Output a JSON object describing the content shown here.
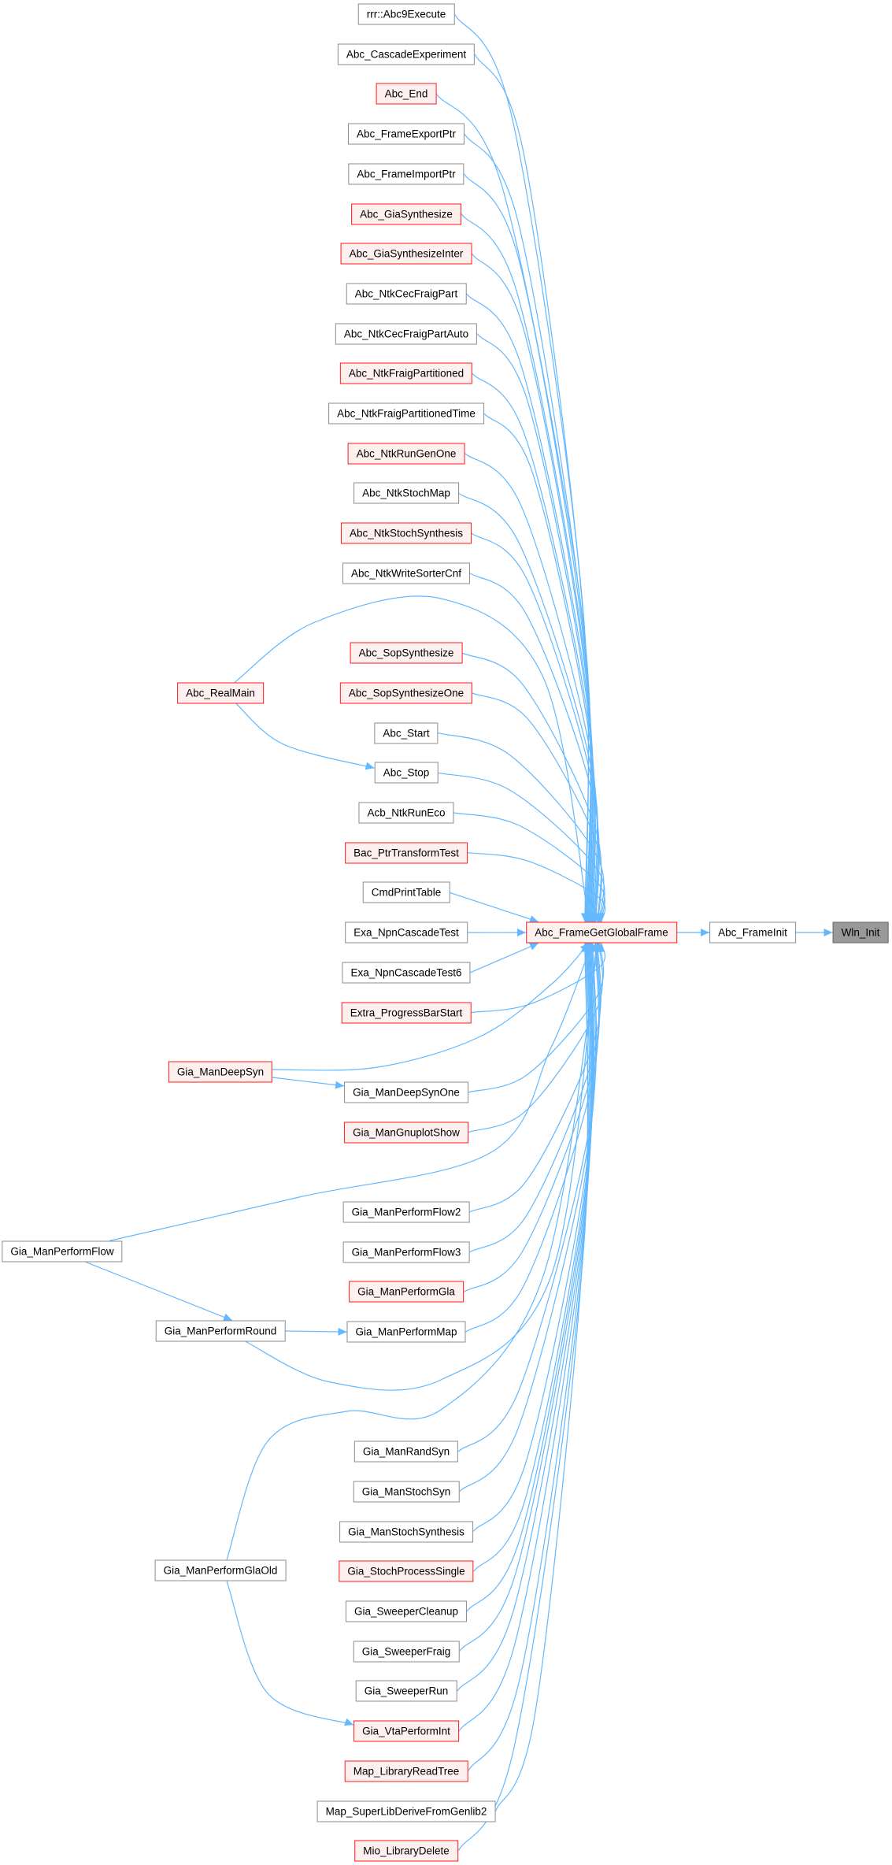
{
  "graph": {
    "type": "caller-graph",
    "colors": {
      "edge": "#63b8ff",
      "red_border": "#ff1a1a",
      "red_fill": "#fff0f0",
      "gray_border": "#8c8c8c",
      "highlight_fill": "#999999"
    },
    "nodes": [
      {
        "id": "rrr::Abc9Execute",
        "style": "gray"
      },
      {
        "id": "Abc_CascadeExperiment",
        "style": "gray"
      },
      {
        "id": "Abc_End",
        "style": "red"
      },
      {
        "id": "Abc_FrameExportPtr",
        "style": "gray"
      },
      {
        "id": "Abc_FrameImportPtr",
        "style": "gray"
      },
      {
        "id": "Abc_GiaSynthesize",
        "style": "red"
      },
      {
        "id": "Abc_GiaSynthesizeInter",
        "style": "red"
      },
      {
        "id": "Abc_NtkCecFraigPart",
        "style": "gray"
      },
      {
        "id": "Abc_NtkCecFraigPartAuto",
        "style": "gray"
      },
      {
        "id": "Abc_NtkFraigPartitioned",
        "style": "red"
      },
      {
        "id": "Abc_NtkFraigPartitionedTime",
        "style": "gray"
      },
      {
        "id": "Abc_NtkRunGenOne",
        "style": "red"
      },
      {
        "id": "Abc_NtkStochMap",
        "style": "gray"
      },
      {
        "id": "Abc_NtkStochSynthesis",
        "style": "red"
      },
      {
        "id": "Abc_NtkWriteSorterCnf",
        "style": "gray"
      },
      {
        "id": "Abc_SopSynthesize",
        "style": "red"
      },
      {
        "id": "Abc_SopSynthesizeOne",
        "style": "red"
      },
      {
        "id": "Abc_Start",
        "style": "gray"
      },
      {
        "id": "Abc_Stop",
        "style": "gray"
      },
      {
        "id": "Acb_NtkRunEco",
        "style": "gray"
      },
      {
        "id": "Bac_PtrTransformTest",
        "style": "red"
      },
      {
        "id": "CmdPrintTable",
        "style": "gray"
      },
      {
        "id": "Exa_NpnCascadeTest",
        "style": "gray"
      },
      {
        "id": "Exa_NpnCascadeTest6",
        "style": "gray"
      },
      {
        "id": "Extra_ProgressBarStart",
        "style": "red"
      },
      {
        "id": "Gia_ManDeepSynOne",
        "style": "gray"
      },
      {
        "id": "Gia_ManGnuplotShow",
        "style": "red"
      },
      {
        "id": "Gia_ManPerformFlow2",
        "style": "gray"
      },
      {
        "id": "Gia_ManPerformFlow3",
        "style": "gray"
      },
      {
        "id": "Gia_ManPerformGla",
        "style": "red"
      },
      {
        "id": "Gia_ManPerformMap",
        "style": "gray"
      },
      {
        "id": "Gia_ManRandSyn",
        "style": "gray"
      },
      {
        "id": "Gia_ManStochSyn",
        "style": "gray"
      },
      {
        "id": "Gia_ManStochSynthesis",
        "style": "gray"
      },
      {
        "id": "Gia_StochProcessSingle",
        "style": "red"
      },
      {
        "id": "Gia_SweeperCleanup",
        "style": "gray"
      },
      {
        "id": "Gia_SweeperFraig",
        "style": "gray"
      },
      {
        "id": "Gia_SweeperRun",
        "style": "gray"
      },
      {
        "id": "Gia_VtaPerformInt",
        "style": "red"
      },
      {
        "id": "Map_LibraryReadTree",
        "style": "red"
      },
      {
        "id": "Map_SuperLibDeriveFromGenlib2",
        "style": "gray"
      },
      {
        "id": "Mio_LibraryDelete",
        "style": "red"
      },
      {
        "id": "Abc_RealMain",
        "style": "red"
      },
      {
        "id": "Gia_ManDeepSyn",
        "style": "red"
      },
      {
        "id": "Gia_ManPerformFlow",
        "style": "gray"
      },
      {
        "id": "Gia_ManPerformRound",
        "style": "gray"
      },
      {
        "id": "Gia_ManPerformGlaOld",
        "style": "gray"
      },
      {
        "id": "Abc_FrameGetGlobalFrame",
        "style": "red"
      },
      {
        "id": "Abc_FrameInit",
        "style": "gray"
      },
      {
        "id": "Wln_Init",
        "style": "highlight"
      }
    ],
    "extra_edges": [
      {
        "from": "Abc_RealMain",
        "to": "Abc_Stop"
      },
      {
        "from": "Gia_ManDeepSyn",
        "to": "Gia_ManDeepSynOne"
      },
      {
        "from": "Gia_ManPerformFlow",
        "to": "Gia_ManPerformRound"
      },
      {
        "from": "Gia_ManPerformRound",
        "to": "Gia_ManPerformMap"
      },
      {
        "from": "Gia_ManPerformGlaOld",
        "to": "Gia_VtaPerformInt"
      },
      {
        "from": "Abc_FrameGetGlobalFrame",
        "to": "Abc_FrameInit"
      },
      {
        "from": "Abc_FrameInit",
        "to": "Wln_Init"
      }
    ],
    "hub": "Abc_FrameGetGlobalFrame"
  }
}
